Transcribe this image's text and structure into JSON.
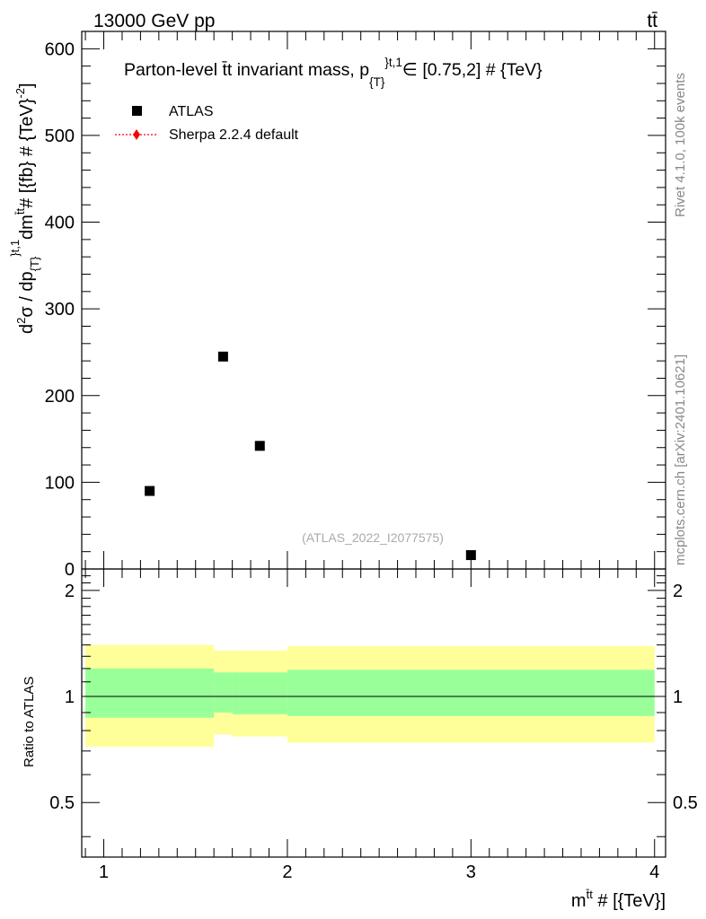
{
  "header": {
    "left_label": "13000 GeV pp",
    "right_label": "tt̄"
  },
  "side_labels": {
    "rivet": "Rivet 4.1.0,  100k events",
    "mcplots": "mcplots.cern.ch [arXiv:2401.10621]"
  },
  "chart_data": [
    {
      "type": "scatter",
      "panel": "main",
      "title": "Parton-level t̄t invariant mass, p_{T}^{t,1}∈ [0.75,2] # {TeV}",
      "title_parts": {
        "main": "Parton-level t̄t invariant mass, p",
        "sub": "{T}",
        "sup": "}t,1",
        "tail": "∈ [0.75,2] # {TeV}"
      },
      "ylabel": "d²σ / dp_{T}^{t,1} dm^{t̄t} # [{fb} # {TeV}^-2]",
      "ylabel_parts": {
        "a": "d",
        "a_sup": "2",
        "b": "σ / dp",
        "b_sub": "{T}",
        "b_sup": "}t,1",
        "c": "dm",
        "c_sup": "t̄t",
        "d": "# [{fb} # {TeV}",
        "d_sup": "-2",
        "e": "]"
      },
      "xlim": [
        0.88,
        4.06
      ],
      "ylim": [
        0,
        620
      ],
      "yticks": [
        0,
        100,
        200,
        300,
        400,
        500,
        600
      ],
      "ytick_labels": [
        "0",
        "100",
        "200",
        "300",
        "400",
        "500",
        "600"
      ],
      "series": [
        {
          "name": "ATLAS",
          "marker": "square",
          "color": "#000000",
          "x": [
            1.25,
            1.65,
            1.85,
            3.0
          ],
          "y": [
            90,
            245,
            142,
            16
          ]
        },
        {
          "name": "Sherpa 2.2.4 default",
          "marker": "diamond",
          "color": "#ff0000",
          "x": [],
          "y": []
        }
      ],
      "legend": [
        "ATLAS",
        "Sherpa 2.2.4 default"
      ],
      "legend_position": "top-left",
      "annotation": "(ATLAS_2022_I2077575)"
    },
    {
      "type": "area",
      "panel": "ratio",
      "ylabel": "Ratio to ATLAS",
      "xlabel": "m^{t̄t} # [{TeV}]",
      "xlabel_parts": {
        "a": "m",
        "a_sup": "t̄t",
        "b": " # [{TeV}]"
      },
      "xlim": [
        0.88,
        4.06
      ],
      "ylim": [
        0.35,
        2.3
      ],
      "yticks": [
        0.5,
        1,
        2
      ],
      "ytick_labels": [
        "0.5",
        "1",
        "2"
      ],
      "xticks": [
        1,
        2,
        3,
        4
      ],
      "xtick_labels": [
        "1",
        "2",
        "3",
        "4"
      ],
      "reference_line": 1,
      "bins": [
        {
          "x0": 0.9,
          "x1": 1.6,
          "inner": [
            0.87,
            1.2
          ],
          "outer": [
            0.72,
            1.4
          ]
        },
        {
          "x0": 1.6,
          "x1": 1.7,
          "inner": [
            0.9,
            1.17
          ],
          "outer": [
            0.78,
            1.35
          ]
        },
        {
          "x0": 1.7,
          "x1": 2.0,
          "inner": [
            0.89,
            1.17
          ],
          "outer": [
            0.77,
            1.35
          ]
        },
        {
          "x0": 2.0,
          "x1": 4.0,
          "inner": [
            0.88,
            1.19
          ],
          "outer": [
            0.74,
            1.39
          ]
        }
      ],
      "inner_color": "#99ff99",
      "outer_color": "#ffff99"
    }
  ]
}
